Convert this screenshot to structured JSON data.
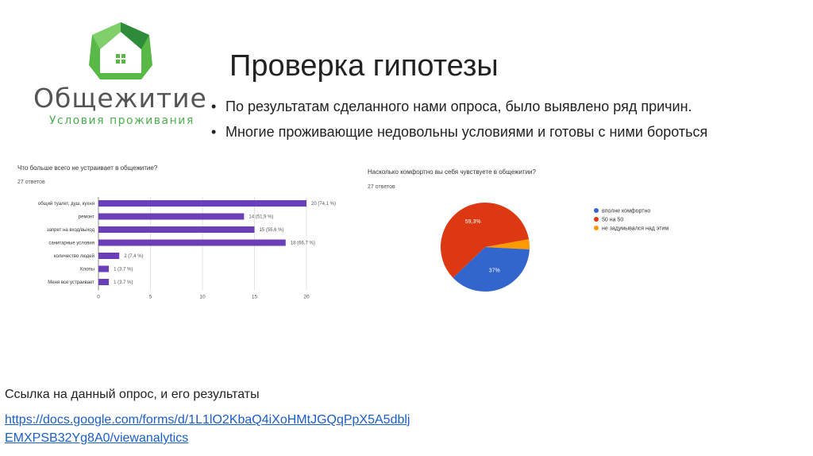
{
  "logo": {
    "word": "Общежитие",
    "tagline": "Условия проживания"
  },
  "title": "Проверка гипотезы",
  "bullets": [
    "По результатам сделанного нами опроса, было выявлено ряд причин.",
    "Многие проживающие недовольны условиями и готовы с ними бороться"
  ],
  "colors": {
    "bar": "#6a3fb8",
    "pie_blue": "#3366cc",
    "pie_red": "#dc3912",
    "pie_orange": "#ff9900",
    "logo_green": "#4caf50",
    "link": "#1a5fc7"
  },
  "chart_data": [
    {
      "type": "bar",
      "orientation": "horizontal",
      "title": "Что больше всего не устраивает в общежитие?",
      "subtitle": "27 ответов",
      "categories": [
        "общий туалет, душ, кухня",
        "ремонт",
        "запрет на вход/выход",
        "санитарные условия",
        "количество людей",
        "Клопы",
        "Меня все устраивает"
      ],
      "values": [
        20,
        14,
        15,
        18,
        2,
        1,
        1
      ],
      "value_labels": [
        "20 (74,1 %)",
        "14 (51,9 %)",
        "15 (55,6 %)",
        "18 (66,7 %)",
        "2 (7,4 %)",
        "1 (3,7 %)",
        "1 (3,7 %)"
      ],
      "xlim": [
        0,
        20
      ],
      "xticks": [
        "0",
        "5",
        "10",
        "15",
        "20"
      ],
      "grid": true
    },
    {
      "type": "pie",
      "title": "Насколько комфортно вы себя чувствуете в общежитии?",
      "subtitle": "27 ответов",
      "labels": [
        "вполне комфортно",
        "50 на 50",
        "не задумывался над этим"
      ],
      "values": [
        37,
        59.3,
        3.7
      ],
      "slice_labels": [
        "37%",
        "59,3%",
        ""
      ],
      "colors": [
        "#3366cc",
        "#dc3912",
        "#ff9900"
      ],
      "legend": "right"
    }
  ],
  "footer": {
    "label": "Ссылка на данный опрос, и его результаты",
    "link": "https://docs.google.com/forms/d/1L1lO2KbaQ4iXoHMtJGQqPpX5A5dbljEMXPSB32Yg8A0/viewanalytics"
  }
}
